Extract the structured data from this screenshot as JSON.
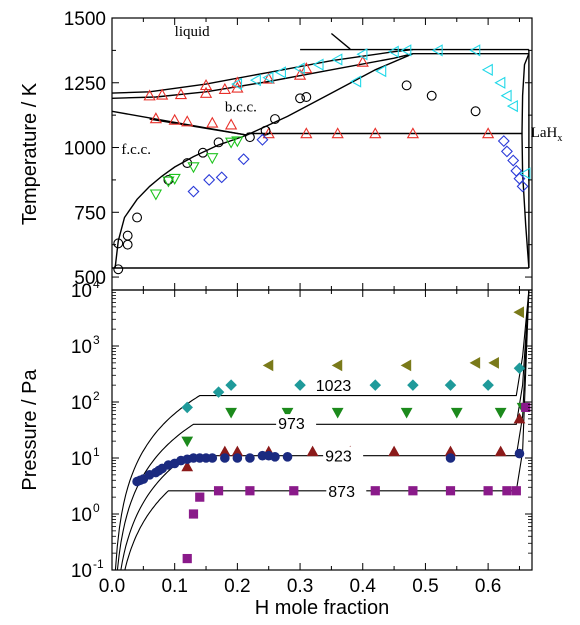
{
  "chart_data": [
    {
      "type": "scatter",
      "panel": "top",
      "xlabel": "H mole fraction",
      "ylabel": "Temperature / K",
      "xlim": [
        0,
        0.67
      ],
      "ylim": [
        450,
        1500
      ],
      "x_ticks": [
        "0.0",
        "0.1",
        "0.2",
        "0.3",
        "0.4",
        "0.5",
        "0.6"
      ],
      "x_tick_values": [
        0,
        0.1,
        0.2,
        0.3,
        0.4,
        0.5,
        0.6
      ],
      "y_ticks": [
        "500",
        "750",
        "1000",
        "1250",
        "1500"
      ],
      "y_tick_values": [
        500,
        750,
        1000,
        1250,
        1500
      ],
      "phase_labels": [
        {
          "text": "liquid",
          "x": 0.1,
          "y": 1430
        },
        {
          "text": "b.c.c.",
          "x": 0.18,
          "y": 1140
        },
        {
          "text": "f.c.c.",
          "x": 0.015,
          "y": 975
        },
        {
          "text": "LaH",
          "sub": "x",
          "x": 0.668,
          "y": 1040
        }
      ],
      "lines": [
        {
          "name": "fcc-bcc-eutectoid",
          "x": [
            0,
            0.665
          ],
          "y": [
            535,
            535
          ]
        },
        {
          "name": "fcc-solvus",
          "x": [
            0.005,
            0.01,
            0.02,
            0.04,
            0.06,
            0.08,
            0.1,
            0.13,
            0.17,
            0.2,
            0.215
          ],
          "y": [
            535,
            640,
            730,
            800,
            850,
            890,
            925,
            965,
            1010,
            1035,
            1048
          ]
        },
        {
          "name": "fcc-bcc-upper",
          "x": [
            0,
            0.215
          ],
          "y": [
            1140,
            1048
          ]
        },
        {
          "name": "bcc-lower",
          "x": [
            0.06,
            0.215
          ],
          "y": [
            1110,
            1048
          ]
        },
        {
          "name": "eutectoid-1054",
          "x": [
            0.215,
            0.655
          ],
          "y": [
            1054,
            1054
          ]
        },
        {
          "name": "bcc-hydride",
          "x": [
            0.215,
            0.28,
            0.35,
            0.42,
            0.48
          ],
          "y": [
            1048,
            1120,
            1210,
            1300,
            1362
          ]
        },
        {
          "name": "solidus-bcc",
          "x": [
            0,
            0.07,
            0.15,
            0.25,
            0.35,
            0.45,
            0.48
          ],
          "y": [
            1190,
            1195,
            1215,
            1255,
            1300,
            1345,
            1362
          ]
        },
        {
          "name": "liquidus",
          "x": [
            0,
            0.06,
            0.15,
            0.25,
            0.35,
            0.45,
            0.48
          ],
          "y": [
            1210,
            1215,
            1245,
            1290,
            1335,
            1370,
            1378
          ]
        },
        {
          "name": "peritectic",
          "x": [
            0.3,
            0.48,
            0.665
          ],
          "y": [
            1378,
            1378,
            1378
          ]
        },
        {
          "name": "peritectic-2",
          "x": [
            0.48,
            0.665
          ],
          "y": [
            1362,
            1362
          ]
        },
        {
          "name": "liquidus-top",
          "x": [
            0.35,
            0.38
          ],
          "y": [
            1440,
            1380
          ]
        },
        {
          "name": "hydride-boundary",
          "x": [
            0.665,
            0.658,
            0.655,
            0.654,
            0.655,
            0.66,
            0.665
          ],
          "y": [
            1362,
            1320,
            1200,
            1054,
            900,
            700,
            535
          ]
        },
        {
          "name": "right-edge",
          "x": [
            0.665,
            0.665
          ],
          "y": [
            535,
            1378
          ]
        }
      ],
      "series": [
        {
          "name": "red-triangle-up",
          "marker": "triangle-up-open",
          "color": "#e8302a",
          "x": [
            0.06,
            0.08,
            0.11,
            0.15,
            0.18,
            0.2,
            0.25,
            0.31,
            0.07,
            0.1,
            0.12,
            0.16,
            0.19,
            0.25,
            0.31,
            0.36,
            0.42,
            0.48,
            0.6,
            0.15,
            0.2,
            0.3,
            0.4
          ],
          "y": [
            1200,
            1203,
            1205,
            1210,
            1225,
            1230,
            1265,
            1305,
            1112,
            1106,
            1100,
            1095,
            1088,
            1054,
            1054,
            1054,
            1054,
            1054,
            1054,
            1240,
            1250,
            1280,
            1330
          ]
        },
        {
          "name": "black-circle",
          "marker": "circle-open",
          "color": "#000000",
          "x": [
            0.01,
            0.01,
            0.025,
            0.025,
            0.04,
            0.09,
            0.12,
            0.145,
            0.17,
            0.22,
            0.245,
            0.26,
            0.3,
            0.31,
            0.47,
            0.51,
            0.58
          ],
          "y": [
            530,
            630,
            660,
            625,
            730,
            875,
            940,
            980,
            1020,
            1040,
            1065,
            1110,
            1190,
            1195,
            1240,
            1200,
            1140
          ]
        },
        {
          "name": "green-triangle-down",
          "marker": "triangle-down-open",
          "color": "#1ec41e",
          "x": [
            0.07,
            0.09,
            0.1,
            0.13,
            0.16,
            0.19,
            0.2
          ],
          "y": [
            820,
            870,
            880,
            925,
            960,
            1020,
            1025
          ]
        },
        {
          "name": "blue-diamond",
          "marker": "diamond-open",
          "color": "#2b3bd8",
          "x": [
            0.13,
            0.155,
            0.175,
            0.21,
            0.24,
            0.625,
            0.63,
            0.64,
            0.645,
            0.65,
            0.655
          ],
          "y": [
            830,
            875,
            885,
            955,
            1030,
            1025,
            985,
            950,
            910,
            880,
            850
          ]
        },
        {
          "name": "cyan-triangle-left",
          "marker": "triangle-left-open",
          "color": "#20d8e8",
          "x": [
            0.2,
            0.23,
            0.25,
            0.27,
            0.3,
            0.33,
            0.36,
            0.4,
            0.45,
            0.47,
            0.52,
            0.58,
            0.6,
            0.62,
            0.63,
            0.64,
            0.66,
            0.39,
            0.43
          ],
          "y": [
            1245,
            1260,
            1270,
            1290,
            1305,
            1320,
            1340,
            1360,
            1370,
            1375,
            1375,
            1375,
            1300,
            1250,
            1200,
            1160,
            900,
            1255,
            1295
          ]
        }
      ]
    },
    {
      "type": "scatter",
      "panel": "bottom",
      "xlabel": "H mole fraction",
      "ylabel": "Pressure / Pa",
      "xlim": [
        0,
        0.67
      ],
      "ylim": [
        0.1,
        10000
      ],
      "yscale": "log",
      "x_ticks": [
        "0.0",
        "0.1",
        "0.2",
        "0.3",
        "0.4",
        "0.5",
        "0.6"
      ],
      "x_tick_values": [
        0,
        0.1,
        0.2,
        0.3,
        0.4,
        0.5,
        0.6
      ],
      "y_tick_exponents": [
        "-1",
        "0",
        "1",
        "2",
        "3",
        "4"
      ],
      "y_tick_base": "10",
      "isotherm_labels": [
        {
          "text": "1023",
          "x": 0.325,
          "y": 200
        },
        {
          "text": "973",
          "x": 0.265,
          "y": 42
        },
        {
          "text": "923",
          "x": 0.34,
          "y": 11
        },
        {
          "text": "873",
          "x": 0.345,
          "y": 2.6
        }
      ],
      "isotherms": [
        {
          "name": "1023",
          "plateau": 130,
          "x_start": 0.14,
          "x_end": 0.645
        },
        {
          "name": "973",
          "plateau": 40,
          "x_start": 0.13,
          "x_end": 0.645
        },
        {
          "name": "923",
          "plateau": 11,
          "x_start": 0.12,
          "x_end": 0.645
        },
        {
          "name": "873",
          "plateau": 2.6,
          "x_start": 0.09,
          "x_end": 0.645
        }
      ],
      "series": [
        {
          "name": "1023 K",
          "marker": "diamond-filled",
          "color": "#1f9a9a",
          "x": [
            0.12,
            0.17,
            0.19,
            0.3,
            0.42,
            0.48,
            0.54,
            0.6,
            0.65
          ],
          "y": [
            80,
            150,
            200,
            200,
            200,
            200,
            200,
            200,
            400
          ]
        },
        {
          "name": "973 K",
          "marker": "triangle-down-filled",
          "color": "#1c8a1c",
          "x": [
            0.12,
            0.19,
            0.28,
            0.36,
            0.47,
            0.55,
            0.62,
            0.655
          ],
          "y": [
            20,
            65,
            65,
            65,
            65,
            65,
            65,
            80
          ]
        },
        {
          "name": "923 K (dark red)",
          "marker": "triangle-up-filled",
          "color": "#8b1a1a",
          "x": [
            0.12,
            0.18,
            0.2,
            0.25,
            0.32,
            0.38,
            0.45,
            0.54,
            0.62,
            0.65
          ],
          "y": [
            7,
            13,
            13,
            13,
            13,
            13,
            13,
            13,
            13,
            50
          ]
        },
        {
          "name": "923 K (navy)",
          "marker": "circle-filled",
          "color": "#1b2a80",
          "x": [
            0.04,
            0.045,
            0.05,
            0.06,
            0.07,
            0.075,
            0.08,
            0.09,
            0.1,
            0.11,
            0.12,
            0.13,
            0.14,
            0.15,
            0.16,
            0.18,
            0.2,
            0.22,
            0.24,
            0.25,
            0.26,
            0.28,
            0.54,
            0.65
          ],
          "y": [
            3.8,
            4,
            4.2,
            5,
            5.5,
            6,
            6.5,
            7.5,
            8,
            9,
            9.5,
            10,
            10,
            10,
            10,
            10,
            10,
            10,
            11,
            11,
            10.5,
            10.5,
            10,
            12
          ]
        },
        {
          "name": "873 K",
          "marker": "square-filled",
          "color": "#8a1a8a",
          "x": [
            0.12,
            0.13,
            0.14,
            0.17,
            0.22,
            0.29,
            0.36,
            0.42,
            0.48,
            0.54,
            0.6,
            0.63,
            0.645,
            0.66
          ],
          "y": [
            0.16,
            1,
            2,
            2.6,
            2.6,
            2.6,
            2.6,
            2.6,
            2.6,
            2.6,
            2.6,
            2.6,
            2.6,
            80
          ]
        },
        {
          "name": "olive-triangle-left",
          "marker": "triangle-left-filled",
          "color": "#7a7a1a",
          "x": [
            0.25,
            0.36,
            0.47,
            0.58,
            0.61,
            0.65
          ],
          "y": [
            450,
            450,
            450,
            500,
            500,
            4000
          ]
        }
      ]
    }
  ]
}
